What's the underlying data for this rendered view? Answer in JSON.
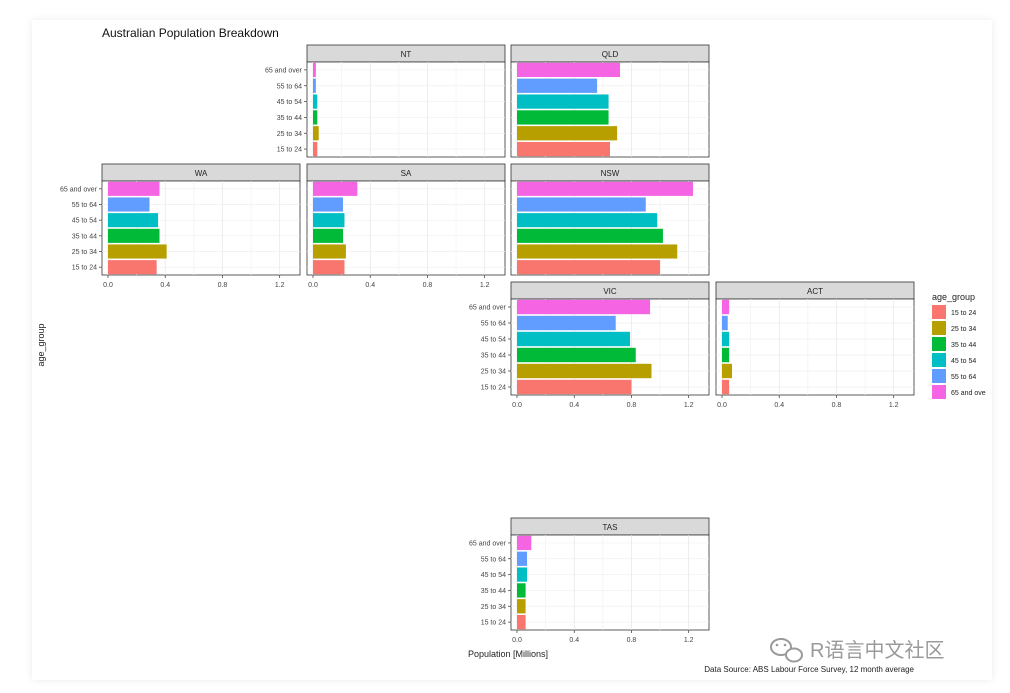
{
  "chart_data": {
    "type": "bar",
    "orientation": "horizontal",
    "title": "Australian Population Breakdown",
    "xlabel": "Population [Millions]",
    "ylabel": "age_group",
    "caption": "Data Source: ABS Labour Force Survey, 12 month average",
    "xlim": [
      0,
      1.3
    ],
    "xticks": [
      "0.0",
      "0.4",
      "0.8",
      "1.2"
    ],
    "categories": [
      "15 to 24",
      "25 to 34",
      "35 to 44",
      "45 to 54",
      "55 to 64",
      "65 and over"
    ],
    "colors": {
      "15 to 24": "#F8766D",
      "25 to 34": "#B79F00",
      "35 to 44": "#00BA38",
      "45 to 54": "#00BFC4",
      "55 to 64": "#619CFF",
      "65 and over": "#F564E3"
    },
    "panels": [
      {
        "state": "NT",
        "values": [
          0.03,
          0.04,
          0.03,
          0.03,
          0.02,
          0.02
        ]
      },
      {
        "state": "QLD",
        "values": [
          0.65,
          0.7,
          0.64,
          0.64,
          0.56,
          0.72
        ]
      },
      {
        "state": "WA",
        "values": [
          0.34,
          0.41,
          0.36,
          0.35,
          0.29,
          0.36
        ]
      },
      {
        "state": "SA",
        "values": [
          0.22,
          0.23,
          0.21,
          0.22,
          0.21,
          0.31
        ]
      },
      {
        "state": "NSW",
        "values": [
          1.0,
          1.12,
          1.02,
          0.98,
          0.9,
          1.23
        ]
      },
      {
        "state": "VIC",
        "values": [
          0.8,
          0.94,
          0.83,
          0.79,
          0.69,
          0.93
        ]
      },
      {
        "state": "ACT",
        "values": [
          0.05,
          0.07,
          0.05,
          0.05,
          0.04,
          0.05
        ]
      },
      {
        "state": "TAS",
        "values": [
          0.06,
          0.06,
          0.06,
          0.07,
          0.07,
          0.1
        ]
      }
    ],
    "legend": {
      "title": "age_group",
      "position": "right",
      "items": [
        "15 to 24",
        "25 to 34",
        "35 to 44",
        "45 to 54",
        "55 to 64",
        "65 and ove"
      ]
    }
  },
  "watermark": {
    "text": "R语言中文社区",
    "icon": "wechat-icon"
  }
}
